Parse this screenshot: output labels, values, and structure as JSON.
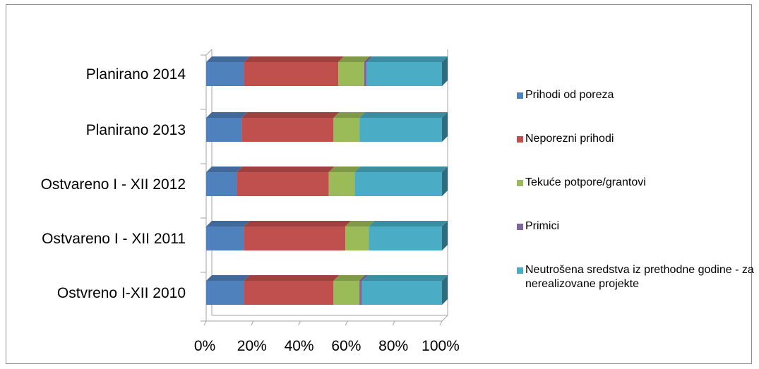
{
  "chart_data": {
    "type": "bar",
    "orientation": "horizontal",
    "stacked": "percent",
    "three_d": true,
    "categories": [
      "Ostvreno I-XII 2010",
      "Ostvareno I - XII 2011",
      "Ostvareno I - XII 2012",
      "Planirano 2013",
      "Planirano 2014"
    ],
    "series": [
      {
        "name": "Prihodi od poreza",
        "color": "#4f81bd",
        "values": [
          16,
          16,
          13,
          15,
          16
        ]
      },
      {
        "name": "Neporezni prihodi",
        "color": "#c0504d",
        "values": [
          38,
          43,
          39,
          39,
          40
        ]
      },
      {
        "name": "Tekuće potpore/grantovi",
        "color": "#9bbb59",
        "values": [
          11,
          10,
          11,
          11,
          11
        ]
      },
      {
        "name": "Primici",
        "color": "#8064a2",
        "values": [
          1,
          0,
          0,
          0,
          1
        ]
      },
      {
        "name": "Neutrošena sredstva iz prethodne godine - za nerealizovane projekte",
        "color": "#4bacc6",
        "values": [
          34,
          31,
          37,
          35,
          32
        ]
      }
    ],
    "xticks": [
      "0%",
      "20%",
      "40%",
      "60%",
      "80%",
      "100%"
    ],
    "xlim": [
      0,
      100
    ],
    "legend": {
      "position": "right"
    },
    "gridlines": false
  }
}
